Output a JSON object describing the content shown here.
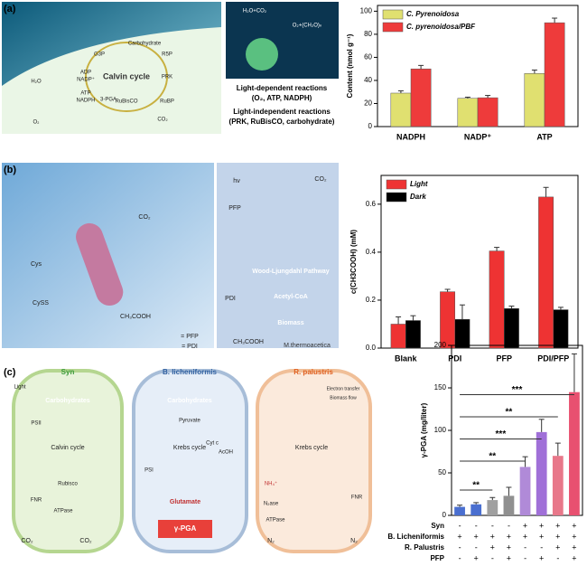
{
  "figure": {
    "labels": {
      "a": "(a)",
      "b": "(b)",
      "c": "(c)"
    },
    "a": [
      "Calvin cycle",
      "Carbohydrate",
      "G3P",
      "R5P",
      "ADP",
      "NADP⁺",
      "H₂O",
      "ATP",
      "NADPH",
      "3-PGA",
      "RuBisCO",
      "RuBP",
      "CO₂",
      "O₂",
      "PRK",
      "H₂O+CO₂",
      "O₂+(CH₂O)ₙ",
      "Light-dependent reactions",
      "(O₂, ATP, NADPH)",
      "Light-independent reactions",
      "(PRK, RuBisCO, carbohydrate)"
    ],
    "b": [
      "CO₂",
      "Cys",
      "CySS",
      "CH₃COOH",
      "= PFP",
      "= PDI",
      "hν",
      "PFP",
      "PDI",
      "Wood-Ljungdahl Pathway",
      "Acetyl-CoA",
      "Biomass",
      "CH₃COOH",
      "M.thermoacetica",
      "CO₂"
    ],
    "c": [
      "Syn",
      "B. licheniformis",
      "R. palustris",
      "Light",
      "Carbohydrates",
      "Carbohydrates",
      "Calvin cycle",
      "Krebs cycle",
      "Krebs cycle",
      "Pyruvate",
      "Glutamate",
      "γ-PGA",
      "AcOH",
      "NH₄⁺",
      "N₂ase",
      "N₂",
      "N₂",
      "CO₂",
      "CO₂",
      "Electron transfer",
      "Biomass flow",
      "PSII",
      "PSI",
      "Rubisco",
      "ATPase",
      "ATPase",
      "FNR",
      "FNR",
      "Cyt c"
    ]
  },
  "chart_data": [
    {
      "type": "bar",
      "ylabel": "Content (nmol g⁻¹)",
      "categories": [
        "NADPH",
        "NADP⁺",
        "ATP"
      ],
      "series": [
        {
          "name": "C. Pyrenoidosa",
          "color": "#e0e070",
          "values": [
            29,
            24.5,
            46
          ],
          "errors": [
            2,
            1,
            3
          ]
        },
        {
          "name": "C. pyrenoidosa/PBF",
          "color": "#ee3b3b",
          "values": [
            50,
            25,
            90
          ],
          "errors": [
            3,
            2,
            4
          ]
        }
      ],
      "ylim": [
        0,
        105
      ],
      "yticks": [
        0,
        20,
        40,
        60,
        80,
        100
      ],
      "legend": "upper left"
    },
    {
      "type": "bar",
      "ylabel": "c(CH3COOH) (mM)",
      "categories": [
        "Blank",
        "PDI",
        "PFP",
        "PDI/PFP"
      ],
      "series": [
        {
          "name": "Light",
          "color": "#ee3333",
          "values": [
            0.1,
            0.235,
            0.405,
            0.63
          ],
          "errors": [
            0.03,
            0.01,
            0.015,
            0.04
          ]
        },
        {
          "name": "Dark",
          "color": "#000000",
          "values": [
            0.115,
            0.12,
            0.165,
            0.16
          ],
          "errors": [
            0.02,
            0.06,
            0.01,
            0.01
          ]
        }
      ],
      "ylim": [
        0,
        0.72
      ],
      "yticks": [
        {
          "value": 0,
          "label": "0.0"
        },
        0.2,
        0.4,
        0.6
      ],
      "legend": "upper left"
    },
    {
      "type": "bar",
      "ylabel": "γ-PGA (mg/liter)",
      "values": [
        10,
        13,
        18,
        23,
        57,
        98,
        70,
        145
      ],
      "errors": [
        2,
        2,
        3,
        10,
        12,
        15,
        15,
        45
      ],
      "colors": [
        "#4a6fd0",
        "#4a6fd0",
        "#a0a0a0",
        "#909090",
        "#b08ad8",
        "#a070d8",
        "#e8788a",
        "#e85070"
      ],
      "ylim": [
        0,
        200
      ],
      "yticks": [
        0,
        50,
        100,
        150,
        200
      ],
      "conditions": [
        {
          "name": "Syn",
          "signs": [
            "-",
            "-",
            "-",
            "-",
            "+",
            "+",
            "+",
            "+"
          ]
        },
        {
          "name": "B. Licheniformis",
          "signs": [
            "+",
            "+",
            "+",
            "+",
            "+",
            "+",
            "+",
            "+"
          ]
        },
        {
          "name": "R. Palustris",
          "signs": [
            "-",
            "-",
            "+",
            "+",
            "-",
            "-",
            "+",
            "+"
          ]
        },
        {
          "name": "PFP",
          "signs": [
            "-",
            "+",
            "-",
            "+",
            "-",
            "+",
            "-",
            "+"
          ]
        }
      ],
      "annotations": [
        {
          "text": "**",
          "from": 0,
          "to": 2
        },
        {
          "text": "**",
          "from": 0,
          "to": 4
        },
        {
          "text": "***",
          "from": 0,
          "to": 5
        },
        {
          "text": "**",
          "from": 0,
          "to": 6
        },
        {
          "text": "***",
          "from": 0,
          "to": 7
        }
      ]
    }
  ]
}
